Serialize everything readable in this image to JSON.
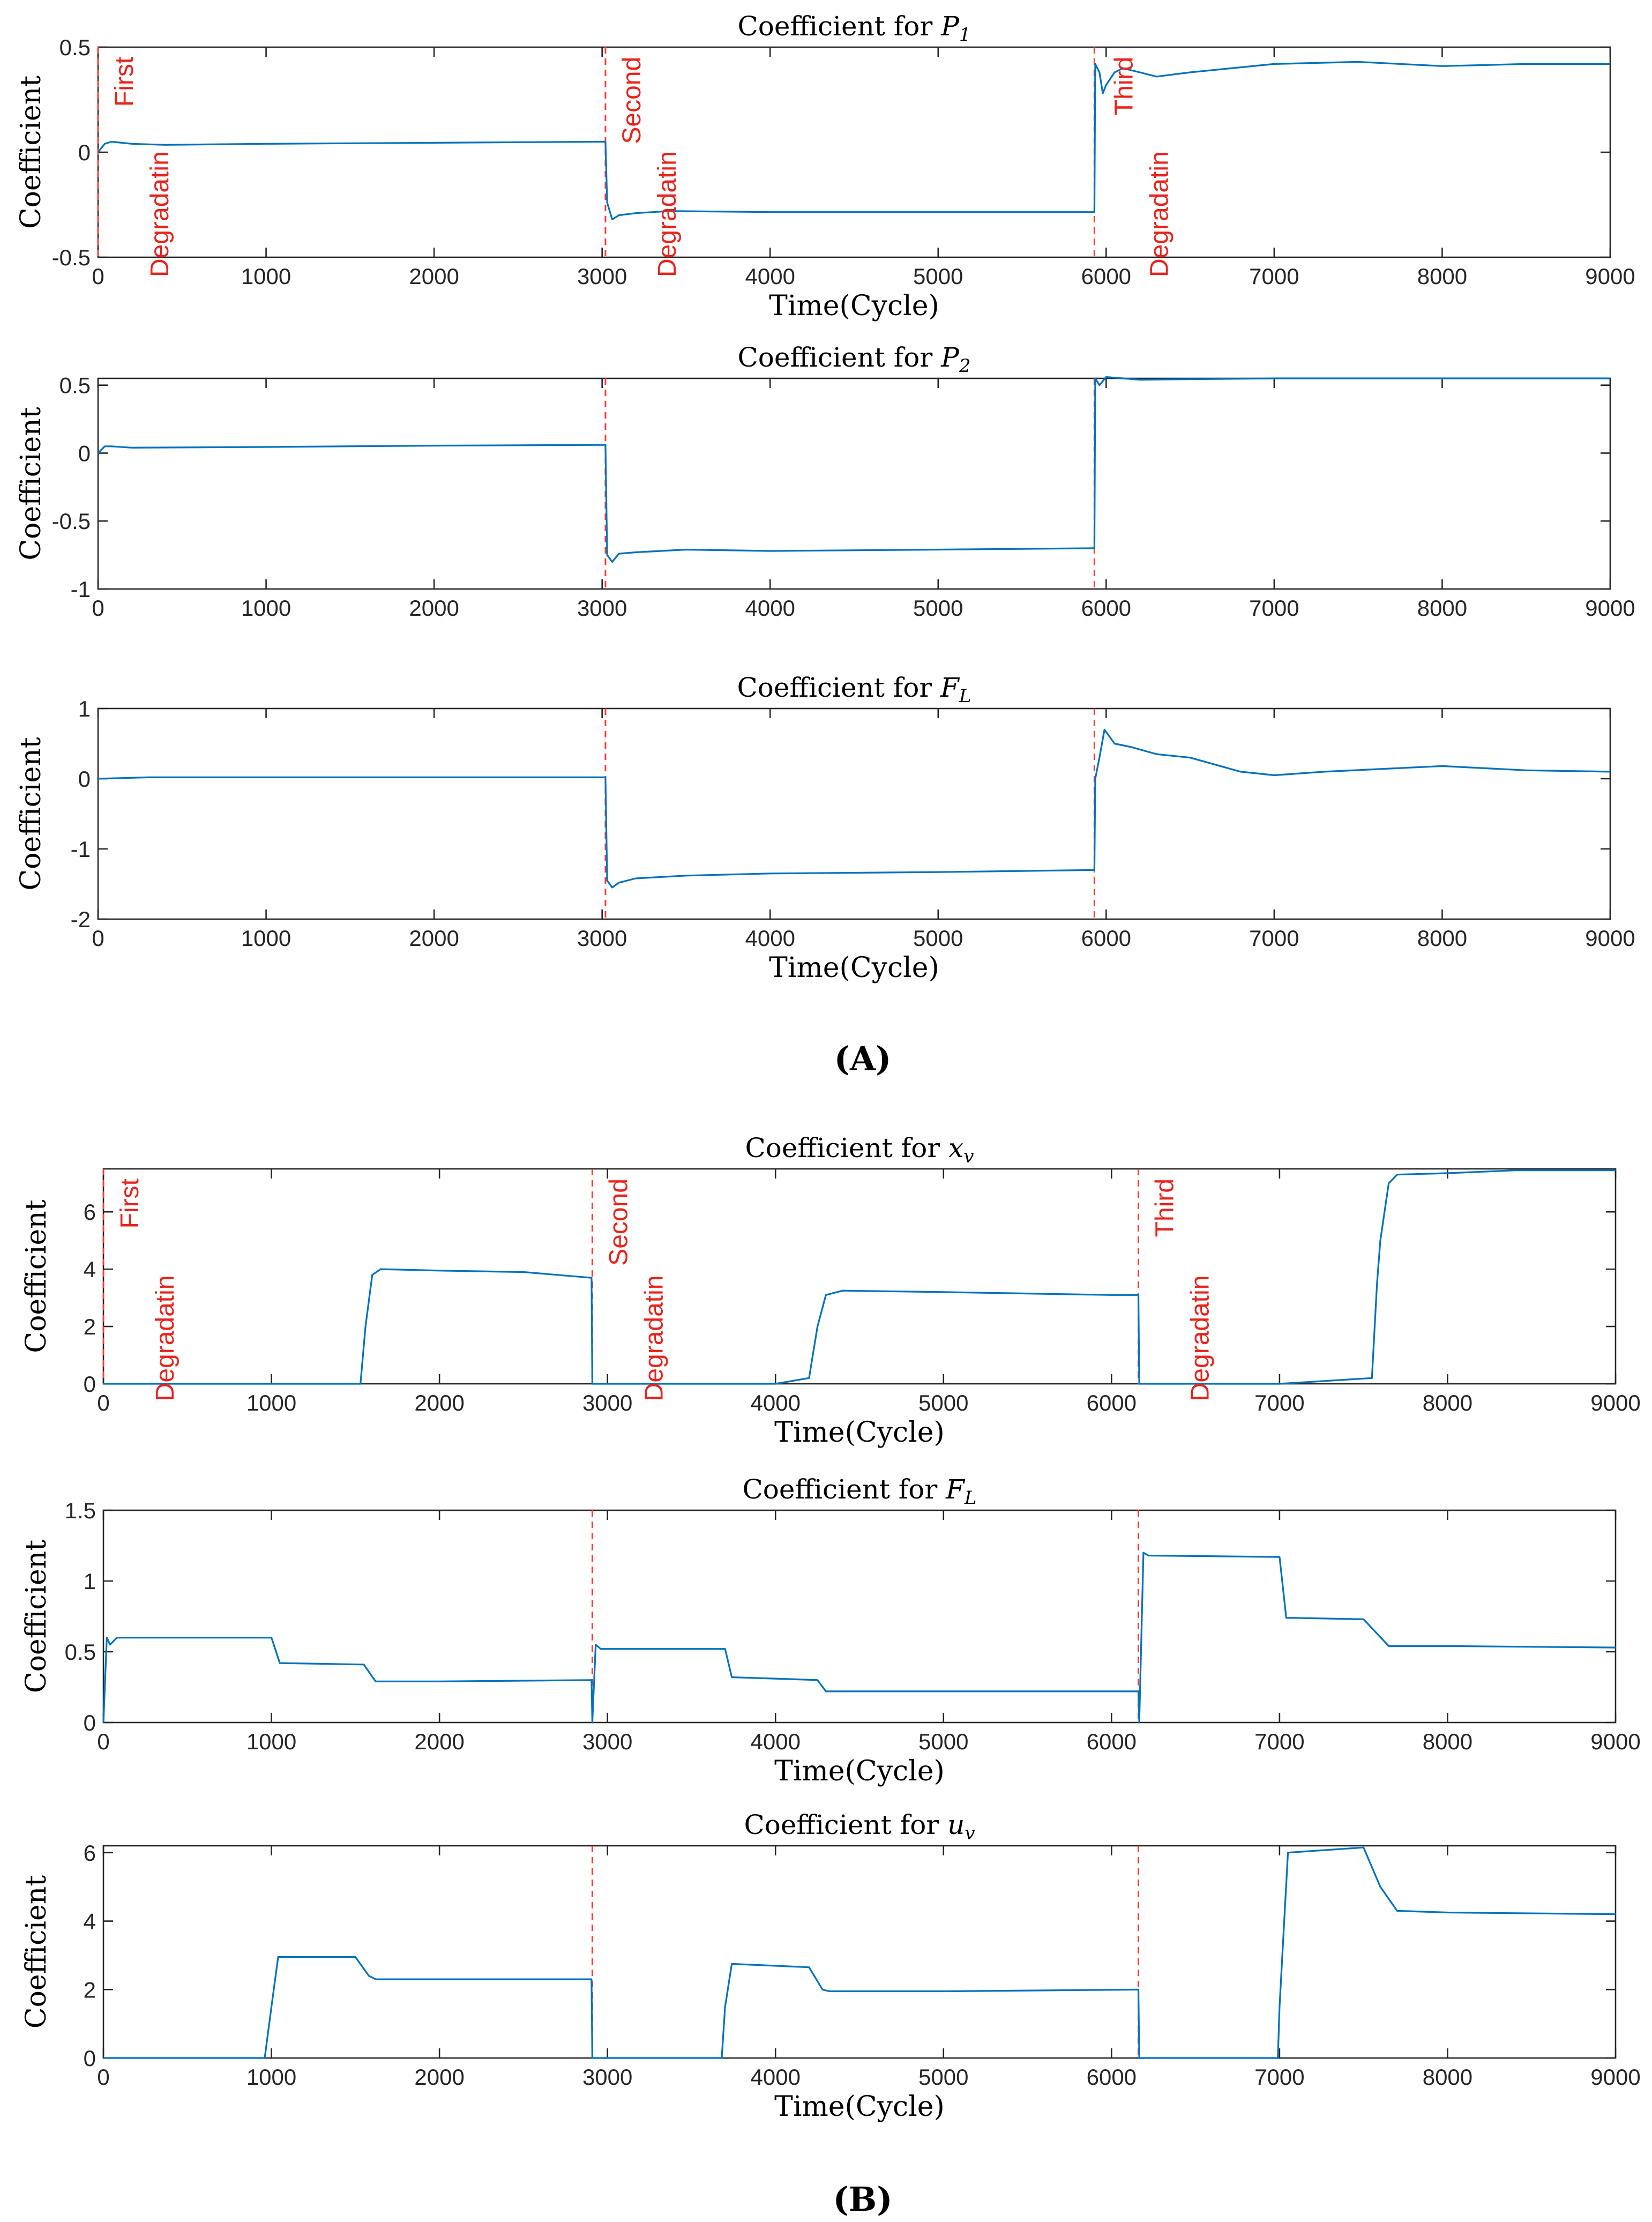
{
  "figure_labels": {
    "open_paren": "(",
    "close_paren": ")",
    "panel_a": "A",
    "panel_b": "B"
  },
  "colors": {
    "series": "#0072bd",
    "annotation": "#e8231c",
    "dashed_line": "#ff3b30"
  },
  "chart_data": [
    {
      "type": "line",
      "panel": "A",
      "title": "Coefficient for P",
      "title_var": "P",
      "title_sub": "1",
      "xlabel": "Time(Cycle)",
      "ylabel": "Coefficient",
      "xlim": [
        0,
        9000
      ],
      "ylim": [
        -0.5,
        0.5
      ],
      "xticks": [
        0,
        1000,
        2000,
        3000,
        4000,
        5000,
        6000,
        7000,
        8000,
        9000
      ],
      "xticklabels": [
        "0",
        "1000",
        "2000",
        "3000",
        "4000",
        "5000",
        "6000",
        "7000",
        "8000",
        "9000"
      ],
      "yticks": [
        -0.5,
        0,
        0.5
      ],
      "yticklabels": [
        "-0.5",
        "0",
        "0.5"
      ],
      "degradation_lines": [
        0,
        3020,
        5930
      ],
      "annotations": [
        {
          "lines": [
            "First",
            "Degradatin"
          ],
          "x": 80
        },
        {
          "lines": [
            "Second",
            "Degradatin"
          ],
          "x": 3100
        },
        {
          "lines": [
            "Third",
            "Degradatin"
          ],
          "x": 6030
        }
      ],
      "series": [
        {
          "name": "Coefficient",
          "x": [
            0,
            40,
            80,
            200,
            400,
            1000,
            2000,
            3000,
            3020,
            3030,
            3060,
            3100,
            3200,
            3400,
            4000,
            5000,
            5930,
            5935,
            5960,
            5980,
            6000,
            6050,
            6100,
            6200,
            6300,
            6500,
            7000,
            7500,
            8000,
            8500,
            9000
          ],
          "y": [
            0,
            0.04,
            0.05,
            0.04,
            0.035,
            0.04,
            0.045,
            0.05,
            0.05,
            -0.24,
            -0.32,
            -0.3,
            -0.29,
            -0.28,
            -0.285,
            -0.285,
            -0.285,
            0.42,
            0.38,
            0.28,
            0.32,
            0.38,
            0.4,
            0.38,
            0.36,
            0.38,
            0.42,
            0.43,
            0.41,
            0.42,
            0.42
          ]
        }
      ]
    },
    {
      "type": "line",
      "panel": "A",
      "title": "Coefficient for P",
      "title_var": "P",
      "title_sub": "2",
      "xlabel": "",
      "ylabel": "Coefficient",
      "xlim": [
        0,
        9000
      ],
      "ylim": [
        -1,
        0.55
      ],
      "xticks": [
        0,
        1000,
        2000,
        3000,
        4000,
        5000,
        6000,
        7000,
        8000,
        9000
      ],
      "xticklabels": [
        "0",
        "1000",
        "2000",
        "3000",
        "4000",
        "5000",
        "6000",
        "7000",
        "8000",
        "9000"
      ],
      "yticks": [
        -1,
        -0.5,
        0,
        0.5
      ],
      "yticklabels": [
        "-1",
        "-0.5",
        "0",
        "0.5"
      ],
      "degradation_lines": [
        3020,
        5930
      ],
      "annotations": [],
      "series": [
        {
          "name": "Coefficient",
          "x": [
            0,
            40,
            80,
            200,
            1000,
            2000,
            3000,
            3020,
            3030,
            3060,
            3100,
            3200,
            3500,
            4000,
            5000,
            5930,
            5935,
            5960,
            6000,
            6200,
            7000,
            8000,
            9000
          ],
          "y": [
            0,
            0.05,
            0.05,
            0.04,
            0.045,
            0.055,
            0.06,
            0.06,
            -0.75,
            -0.8,
            -0.74,
            -0.73,
            -0.71,
            -0.72,
            -0.71,
            -0.7,
            0.55,
            0.5,
            0.56,
            0.54,
            0.55,
            0.55,
            0.55
          ]
        }
      ]
    },
    {
      "type": "line",
      "panel": "A",
      "title": "Coefficient for F",
      "title_var": "F",
      "title_sub": "L",
      "xlabel": "Time(Cycle)",
      "ylabel": "Coefficient",
      "xlim": [
        0,
        9000
      ],
      "ylim": [
        -2,
        1
      ],
      "xticks": [
        0,
        1000,
        2000,
        3000,
        4000,
        5000,
        6000,
        7000,
        8000,
        9000
      ],
      "xticklabels": [
        "0",
        "1000",
        "2000",
        "3000",
        "4000",
        "5000",
        "6000",
        "7000",
        "8000",
        "9000"
      ],
      "yticks": [
        -2,
        -1,
        0,
        1
      ],
      "yticklabels": [
        "-2",
        "-1",
        "0",
        "1"
      ],
      "degradation_lines": [
        3020,
        5930
      ],
      "annotations": [],
      "series": [
        {
          "name": "Coefficient",
          "x": [
            0,
            300,
            1000,
            2000,
            3000,
            3020,
            3030,
            3060,
            3100,
            3200,
            3500,
            4000,
            5000,
            5930,
            5935,
            5960,
            5990,
            6050,
            6150,
            6300,
            6500,
            6800,
            7000,
            7300,
            8000,
            8500,
            9000
          ],
          "y": [
            0,
            0.02,
            0.02,
            0.02,
            0.02,
            0.02,
            -1.45,
            -1.55,
            -1.48,
            -1.42,
            -1.38,
            -1.35,
            -1.33,
            -1.3,
            0,
            0.3,
            0.7,
            0.5,
            0.45,
            0.35,
            0.3,
            0.1,
            0.05,
            0.1,
            0.18,
            0.12,
            0.1
          ]
        }
      ]
    },
    {
      "type": "line",
      "panel": "B",
      "title": "Coefficient for x",
      "title_var": "x",
      "title_sub": "v",
      "xlabel": "Time(Cycle)",
      "ylabel": "Coefficient",
      "xlim": [
        0,
        9000
      ],
      "ylim": [
        0,
        7.5
      ],
      "xticks": [
        0,
        1000,
        2000,
        3000,
        4000,
        5000,
        6000,
        7000,
        8000,
        9000
      ],
      "xticklabels": [
        "0",
        "1000",
        "2000",
        "3000",
        "4000",
        "5000",
        "6000",
        "7000",
        "8000",
        "9000"
      ],
      "yticks": [
        0,
        2,
        4,
        6
      ],
      "yticklabels": [
        "0",
        "2",
        "4",
        "6"
      ],
      "degradation_lines": [
        0,
        2910,
        6160
      ],
      "annotations": [
        {
          "lines": [
            "First",
            "Degradatin"
          ],
          "x": 80
        },
        {
          "lines": [
            "Second",
            "Degradatin"
          ],
          "x": 2990
        },
        {
          "lines": [
            "Third",
            "Degradatin"
          ],
          "x": 6240
        }
      ],
      "series": [
        {
          "name": "Coefficient",
          "x": [
            0,
            1000,
            1530,
            1560,
            1600,
            1650,
            2000,
            2500,
            2905,
            2910,
            3000,
            4000,
            4200,
            4250,
            4300,
            4400,
            5000,
            6000,
            6160,
            6165,
            7000,
            7550,
            7580,
            7600,
            7650,
            7700,
            8000,
            8400,
            9000
          ],
          "y": [
            0,
            0,
            0,
            2.0,
            3.8,
            4.0,
            3.95,
            3.9,
            3.7,
            0,
            0,
            0,
            0.2,
            2.0,
            3.1,
            3.25,
            3.2,
            3.1,
            3.1,
            0,
            0,
            0.2,
            3.5,
            5.0,
            7.0,
            7.3,
            7.35,
            7.45,
            7.45
          ]
        }
      ]
    },
    {
      "type": "line",
      "panel": "B",
      "title": "Coefficient for F",
      "title_var": "F",
      "title_sub": "L",
      "xlabel": "Time(Cycle)",
      "ylabel": "Coefficient",
      "xlim": [
        0,
        9000
      ],
      "ylim": [
        0,
        1.5
      ],
      "xticks": [
        0,
        1000,
        2000,
        3000,
        4000,
        5000,
        6000,
        7000,
        8000,
        9000
      ],
      "xticklabels": [
        "0",
        "1000",
        "2000",
        "3000",
        "4000",
        "5000",
        "6000",
        "7000",
        "8000",
        "9000"
      ],
      "yticks": [
        0,
        0.5,
        1,
        1.5
      ],
      "yticklabels": [
        "0",
        "0.5",
        "1",
        "1.5"
      ],
      "degradation_lines": [
        2910,
        6160
      ],
      "annotations": [],
      "series": [
        {
          "name": "Coefficient",
          "x": [
            0,
            20,
            40,
            80,
            200,
            1000,
            1050,
            1550,
            1620,
            2000,
            2905,
            2910,
            2930,
            2960,
            3700,
            3740,
            4250,
            4300,
            5000,
            6160,
            6165,
            6190,
            6220,
            7000,
            7040,
            7500,
            7650,
            8000,
            9000
          ],
          "y": [
            0,
            0.6,
            0.55,
            0.6,
            0.6,
            0.6,
            0.42,
            0.41,
            0.29,
            0.29,
            0.3,
            0,
            0.55,
            0.52,
            0.52,
            0.32,
            0.3,
            0.22,
            0.22,
            0.22,
            0,
            1.2,
            1.18,
            1.17,
            0.74,
            0.73,
            0.54,
            0.54,
            0.53
          ]
        }
      ]
    },
    {
      "type": "line",
      "panel": "B",
      "title": "Coefficient for u",
      "title_var": "u",
      "title_sub": "v",
      "xlabel": "Time(Cycle)",
      "ylabel": "Coefficient",
      "xlim": [
        0,
        9000
      ],
      "ylim": [
        0,
        6.2
      ],
      "xticks": [
        0,
        1000,
        2000,
        3000,
        4000,
        5000,
        6000,
        7000,
        8000,
        9000
      ],
      "xticklabels": [
        "0",
        "1000",
        "2000",
        "3000",
        "4000",
        "5000",
        "6000",
        "7000",
        "8000",
        "9000"
      ],
      "yticks": [
        0,
        2,
        4,
        6
      ],
      "yticklabels": [
        "0",
        "2",
        "4",
        "6"
      ],
      "degradation_lines": [
        2910,
        6160
      ],
      "annotations": [],
      "series": [
        {
          "name": "Coefficient",
          "x": [
            0,
            960,
            1000,
            1040,
            1500,
            1580,
            1620,
            2000,
            2905,
            2910,
            3680,
            3700,
            3740,
            4200,
            4280,
            4320,
            5000,
            6160,
            6165,
            6990,
            7000,
            7050,
            7500,
            7600,
            7700,
            8000,
            9000
          ],
          "y": [
            0,
            0,
            1.5,
            2.95,
            2.95,
            2.4,
            2.3,
            2.3,
            2.3,
            0,
            0,
            1.5,
            2.75,
            2.65,
            2.0,
            1.95,
            1.95,
            2.0,
            0,
            0,
            1.5,
            6.0,
            6.15,
            5.0,
            4.3,
            4.25,
            4.2
          ]
        }
      ]
    }
  ]
}
